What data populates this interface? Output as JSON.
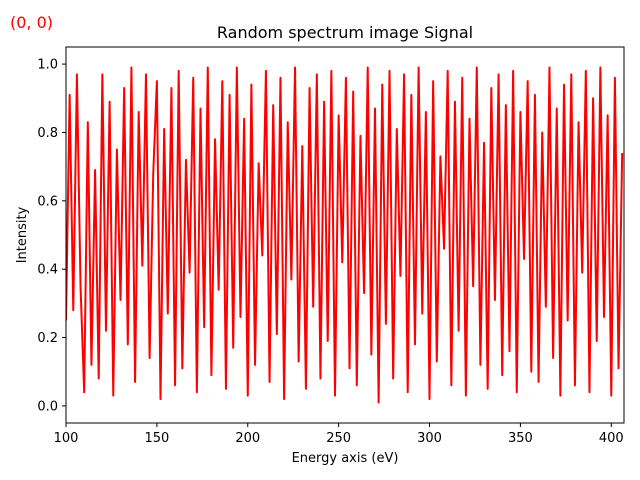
{
  "corner_label": "(0, 0)",
  "colors": {
    "series": "#ff0000",
    "corner_label": "#ff0000"
  },
  "chart_data": {
    "type": "line",
    "title": "Random spectrum image Signal",
    "xlabel": "Energy axis (eV)",
    "ylabel": "Intensity",
    "xlim": [
      100,
      407
    ],
    "ylim": [
      -0.05,
      1.05
    ],
    "x_ticks": [
      "100",
      "150",
      "200",
      "250",
      "300",
      "350",
      "400"
    ],
    "y_ticks": [
      "0.0",
      "0.2",
      "0.4",
      "0.6",
      "0.8",
      "1.0"
    ],
    "grid": false,
    "series": [
      {
        "color": "#ff0000",
        "x": [
          100,
          102,
          104,
          106,
          108,
          110,
          112,
          114,
          116,
          118,
          120,
          122,
          124,
          126,
          128,
          130,
          132,
          134,
          136,
          138,
          140,
          142,
          144,
          146,
          148,
          150,
          152,
          154,
          156,
          158,
          160,
          162,
          164,
          166,
          168,
          170,
          172,
          174,
          176,
          178,
          180,
          182,
          184,
          186,
          188,
          190,
          192,
          194,
          196,
          198,
          200,
          202,
          204,
          206,
          208,
          210,
          212,
          214,
          216,
          218,
          220,
          222,
          224,
          226,
          228,
          230,
          232,
          234,
          236,
          238,
          240,
          242,
          244,
          246,
          248,
          250,
          252,
          254,
          256,
          258,
          260,
          262,
          264,
          266,
          268,
          270,
          272,
          274,
          276,
          278,
          280,
          282,
          284,
          286,
          288,
          290,
          292,
          294,
          296,
          298,
          300,
          302,
          304,
          306,
          308,
          310,
          312,
          314,
          316,
          318,
          320,
          322,
          324,
          326,
          328,
          330,
          332,
          334,
          336,
          338,
          340,
          342,
          344,
          346,
          348,
          350,
          352,
          354,
          356,
          358,
          360,
          362,
          364,
          366,
          368,
          370,
          372,
          374,
          376,
          378,
          380,
          382,
          384,
          386,
          388,
          390,
          392,
          394,
          396,
          398,
          400,
          402,
          404,
          406
        ],
        "y": [
          0.25,
          0.91,
          0.28,
          0.97,
          0.35,
          0.04,
          0.83,
          0.12,
          0.69,
          0.08,
          0.97,
          0.22,
          0.89,
          0.03,
          0.75,
          0.31,
          0.93,
          0.18,
          0.99,
          0.07,
          0.86,
          0.41,
          0.97,
          0.14,
          0.68,
          0.95,
          0.02,
          0.81,
          0.27,
          0.93,
          0.06,
          0.98,
          0.11,
          0.72,
          0.39,
          0.96,
          0.04,
          0.87,
          0.23,
          0.99,
          0.09,
          0.78,
          0.34,
          0.95,
          0.05,
          0.91,
          0.17,
          0.99,
          0.26,
          0.84,
          0.03,
          0.94,
          0.12,
          0.71,
          0.44,
          0.98,
          0.07,
          0.88,
          0.21,
          0.96,
          0.02,
          0.83,
          0.37,
          0.99,
          0.13,
          0.76,
          0.05,
          0.93,
          0.29,
          0.97,
          0.08,
          0.89,
          0.19,
          0.98,
          0.03,
          0.85,
          0.42,
          0.96,
          0.11,
          0.92,
          0.06,
          0.79,
          0.33,
          0.99,
          0.15,
          0.87,
          0.01,
          0.94,
          0.24,
          0.98,
          0.08,
          0.81,
          0.38,
          0.97,
          0.04,
          0.91,
          0.18,
          0.99,
          0.27,
          0.86,
          0.02,
          0.95,
          0.13,
          0.73,
          0.46,
          0.98,
          0.06,
          0.89,
          0.22,
          0.96,
          0.03,
          0.84,
          0.35,
          0.99,
          0.12,
          0.77,
          0.05,
          0.93,
          0.31,
          0.97,
          0.09,
          0.88,
          0.16,
          0.98,
          0.04,
          0.86,
          0.43,
          0.95,
          0.1,
          0.91,
          0.07,
          0.8,
          0.29,
          0.99,
          0.14,
          0.87,
          0.03,
          0.94,
          0.25,
          0.97,
          0.06,
          0.83,
          0.39,
          0.98,
          0.04,
          0.9,
          0.19,
          0.99,
          0.26,
          0.85,
          0.03,
          0.96,
          0.11,
          0.74
        ]
      }
    ]
  }
}
